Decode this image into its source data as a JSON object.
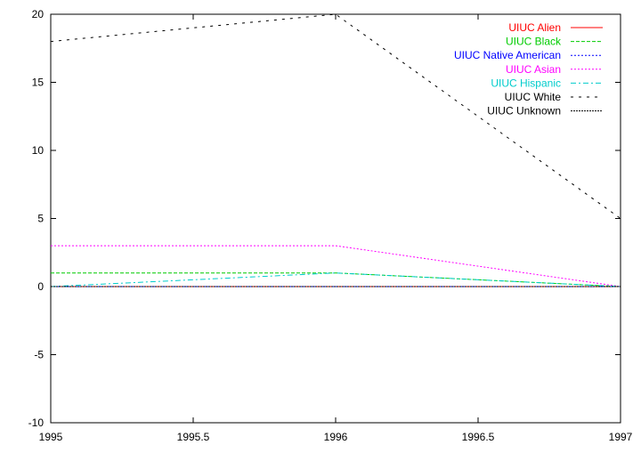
{
  "chart_data": {
    "type": "line",
    "title": "",
    "xlabel": "",
    "ylabel": "",
    "xlim": [
      1995,
      1997
    ],
    "ylim": [
      -10,
      20
    ],
    "xticks": [
      "1995",
      "1995.5",
      "1996",
      "1996.5",
      "1997"
    ],
    "yticks": [
      "-10",
      "-5",
      "0",
      "5",
      "10",
      "15",
      "20"
    ],
    "grid": false,
    "legend_position": "top-right",
    "x": [
      1995,
      1996,
      1997
    ],
    "series": [
      {
        "name": "UIUC Alien",
        "values": [
          0,
          0,
          0
        ],
        "color": "#ff0000",
        "dash": "solid"
      },
      {
        "name": "UIUC Black",
        "values": [
          1,
          1,
          0
        ],
        "color": "#00cc00",
        "dash": "dashed"
      },
      {
        "name": "UIUC Native American",
        "values": [
          0,
          0,
          0
        ],
        "color": "#0000ff",
        "dash": "dotted"
      },
      {
        "name": "UIUC Asian",
        "values": [
          3,
          3,
          0
        ],
        "color": "#ff00ff",
        "dash": "dotted"
      },
      {
        "name": "UIUC Hispanic",
        "values": [
          0,
          1,
          0
        ],
        "color": "#00cccc",
        "dash": "dashdot"
      },
      {
        "name": "UIUC White",
        "values": [
          18,
          20,
          5
        ],
        "color": "#000000",
        "dash": "sparse-dashed"
      },
      {
        "name": "UIUC Unknown",
        "values": [
          0,
          0,
          0
        ],
        "color": "#000000",
        "dash": "dense-dotted"
      }
    ]
  }
}
